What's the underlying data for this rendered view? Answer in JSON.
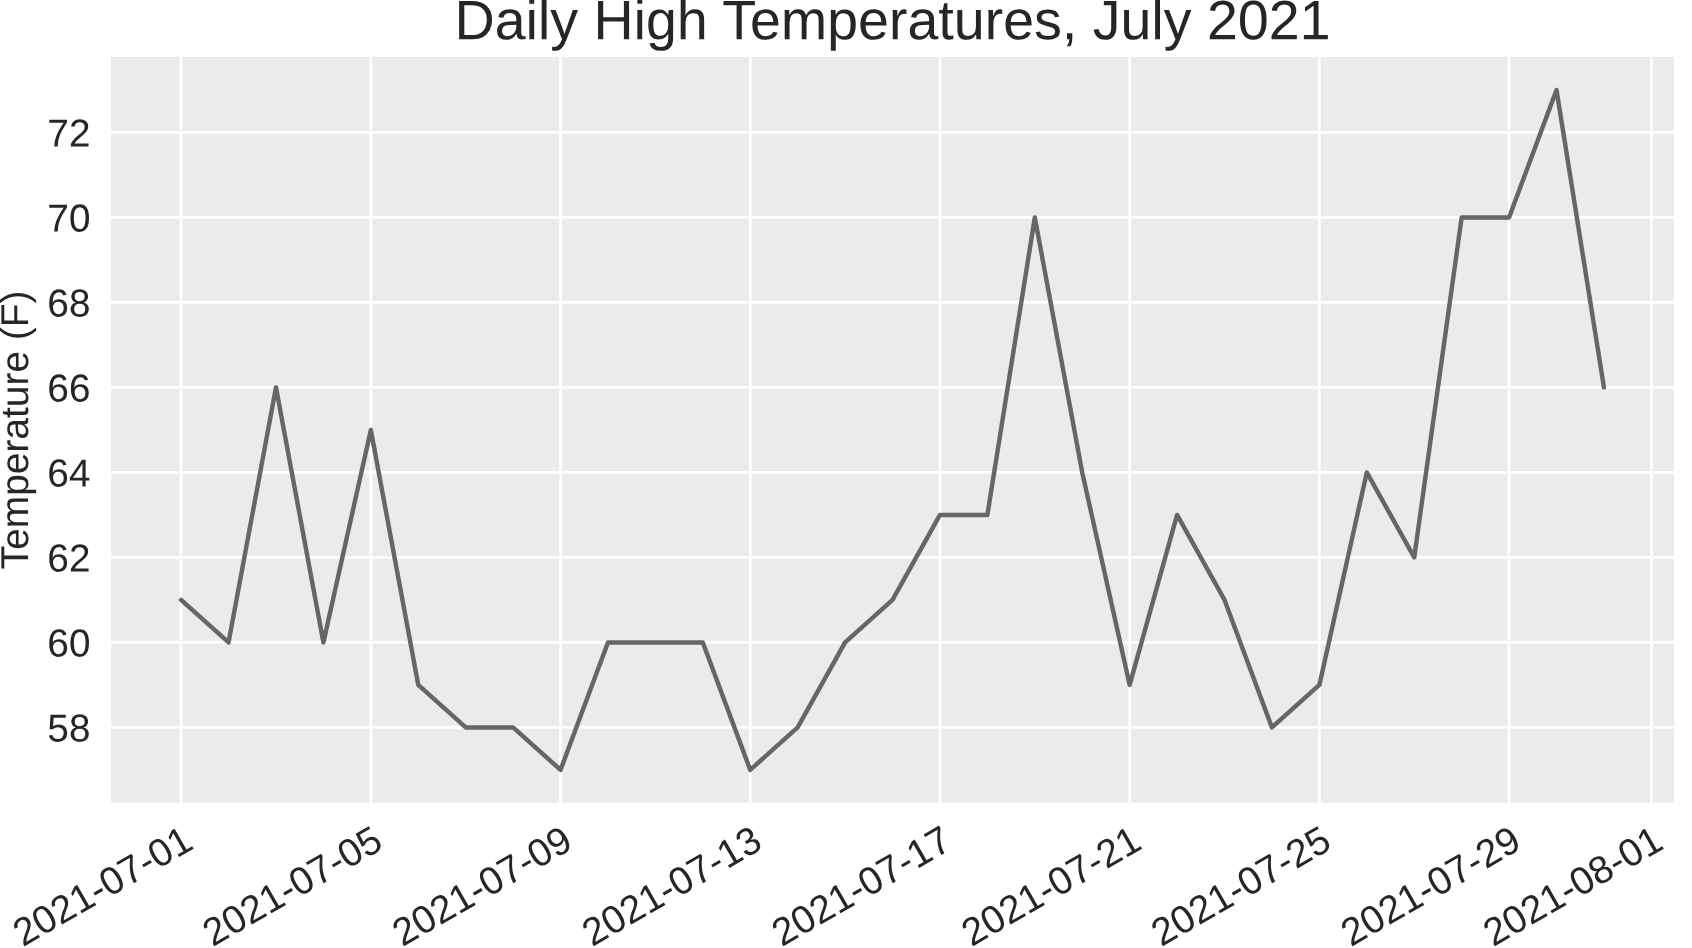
{
  "chart_data": {
    "type": "line",
    "title": "Daily High Temperatures, July 2021",
    "ylabel": "Temperature (F)",
    "x": [
      "2021-07-01",
      "2021-07-02",
      "2021-07-03",
      "2021-07-04",
      "2021-07-05",
      "2021-07-06",
      "2021-07-07",
      "2021-07-08",
      "2021-07-09",
      "2021-07-10",
      "2021-07-11",
      "2021-07-12",
      "2021-07-13",
      "2021-07-14",
      "2021-07-15",
      "2021-07-16",
      "2021-07-17",
      "2021-07-18",
      "2021-07-19",
      "2021-07-20",
      "2021-07-21",
      "2021-07-22",
      "2021-07-23",
      "2021-07-24",
      "2021-07-25",
      "2021-07-26",
      "2021-07-27",
      "2021-07-28",
      "2021-07-29",
      "2021-07-30",
      "2021-07-31"
    ],
    "series": [
      {
        "color": "#666666",
        "values": [
          61,
          60,
          66,
          60,
          65,
          59,
          58,
          58,
          57,
          60,
          60,
          60,
          57,
          58,
          60,
          61,
          63,
          63,
          70,
          64,
          59,
          63,
          61,
          58,
          59,
          64,
          62,
          70,
          70,
          73,
          66
        ]
      }
    ],
    "xlim": [
      "2021-06-29T12:00",
      "2021-08-01T12:00"
    ],
    "ylim": [
      56.2,
      73.8
    ],
    "xticks": [
      "2021-07-01",
      "2021-07-05",
      "2021-07-09",
      "2021-07-13",
      "2021-07-17",
      "2021-07-21",
      "2021-07-25",
      "2021-07-29",
      "2021-08-01"
    ],
    "yticks": [
      58,
      60,
      62,
      64,
      66,
      68,
      70,
      72
    ],
    "grid": true,
    "marker": "none",
    "line_style": "solid"
  }
}
